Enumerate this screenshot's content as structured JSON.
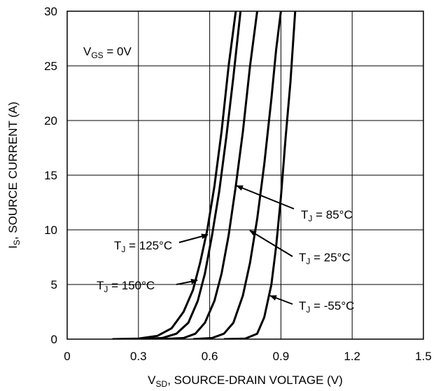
{
  "chart_data": {
    "type": "line",
    "xlabel": {
      "main": "V",
      "sub": "SD",
      "rest": ", SOURCE-DRAIN VOLTAGE (V)"
    },
    "ylabel": {
      "main": "I",
      "sub": "S",
      "rest": ", SOURCE CURRENT (A)"
    },
    "xlim": [
      0,
      1.5
    ],
    "ylim": [
      0,
      30
    ],
    "x_ticks": [
      "0",
      "0.3",
      "0.6",
      "0.9",
      "1.2",
      "1.5"
    ],
    "y_ticks": [
      "0",
      "5",
      "10",
      "15",
      "20",
      "25",
      "30"
    ],
    "grid": true,
    "condition": {
      "main": "V",
      "sub": "GS",
      "rest": " = 0V"
    },
    "series": [
      {
        "name": "T_J = 150°C",
        "label_main": "T",
        "label_sub": "J",
        "label_rest": " = 150°C",
        "points": [
          [
            0.19,
            0.0
          ],
          [
            0.3,
            0.05
          ],
          [
            0.38,
            0.3
          ],
          [
            0.44,
            1.0
          ],
          [
            0.49,
            2.5
          ],
          [
            0.53,
            4.5
          ],
          [
            0.56,
            7.0
          ],
          [
            0.59,
            10.0
          ],
          [
            0.62,
            14.0
          ],
          [
            0.65,
            19.0
          ],
          [
            0.68,
            25.0
          ],
          [
            0.71,
            30.0
          ]
        ]
      },
      {
        "name": "T_J = 125°C",
        "label_main": "T",
        "label_sub": "J",
        "label_rest": " = 125°C",
        "points": [
          [
            0.3,
            0.0
          ],
          [
            0.4,
            0.1
          ],
          [
            0.46,
            0.5
          ],
          [
            0.51,
            1.5
          ],
          [
            0.55,
            3.5
          ],
          [
            0.58,
            6.0
          ],
          [
            0.61,
            9.5
          ],
          [
            0.64,
            13.5
          ],
          [
            0.67,
            18.5
          ],
          [
            0.7,
            24.0
          ],
          [
            0.73,
            30.0
          ]
        ]
      },
      {
        "name": "T_J = 85°C",
        "label_main": "T",
        "label_sub": "J",
        "label_rest": " = 85°C",
        "points": [
          [
            0.4,
            0.0
          ],
          [
            0.49,
            0.1
          ],
          [
            0.54,
            0.5
          ],
          [
            0.58,
            1.5
          ],
          [
            0.62,
            3.5
          ],
          [
            0.65,
            6.0
          ],
          [
            0.68,
            9.5
          ],
          [
            0.71,
            14.0
          ],
          [
            0.74,
            19.0
          ],
          [
            0.77,
            25.0
          ],
          [
            0.8,
            30.0
          ]
        ]
      },
      {
        "name": "T_J = 25°C",
        "label_main": "T",
        "label_sub": "J",
        "label_rest": " = 25°C",
        "points": [
          [
            0.53,
            0.0
          ],
          [
            0.61,
            0.1
          ],
          [
            0.66,
            0.5
          ],
          [
            0.7,
            1.5
          ],
          [
            0.74,
            4.0
          ],
          [
            0.77,
            7.0
          ],
          [
            0.8,
            11.0
          ],
          [
            0.83,
            16.0
          ],
          [
            0.86,
            22.0
          ],
          [
            0.88,
            26.5
          ],
          [
            0.9,
            30.0
          ]
        ]
      },
      {
        "name": "T_J = -55°C",
        "label_main": "T",
        "label_sub": "J",
        "label_rest": " = -55°C",
        "points": [
          [
            0.66,
            0.0
          ],
          [
            0.75,
            0.05
          ],
          [
            0.8,
            0.5
          ],
          [
            0.83,
            2.0
          ],
          [
            0.86,
            5.0
          ],
          [
            0.88,
            8.5
          ],
          [
            0.9,
            13.0
          ],
          [
            0.92,
            18.5
          ],
          [
            0.94,
            23.5
          ],
          [
            0.96,
            30.0
          ]
        ]
      }
    ]
  }
}
